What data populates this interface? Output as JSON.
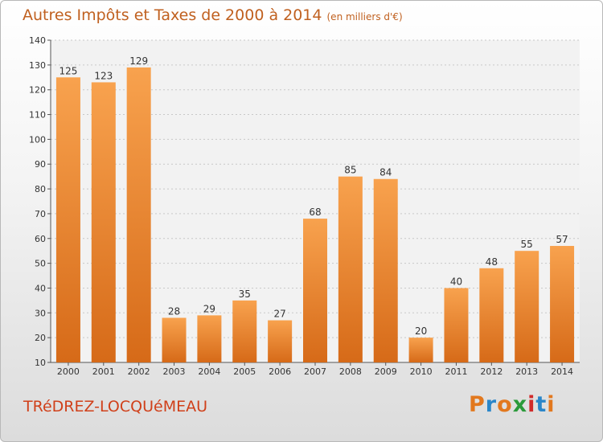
{
  "title": "Autres Impôts et Taxes de 2000 à 2014",
  "subtitle": "(en milliers d'€)",
  "commune": "TRéDREZ-LOCQUéMEAU",
  "logo": {
    "text": "Proxiti",
    "colors": [
      "#e2781e",
      "#2a86c9",
      "#e2781e",
      "#2a9a3a",
      "#d02a2a",
      "#2a86c9",
      "#e2781e"
    ]
  },
  "colors": {
    "bar_top": "#f8a24e",
    "bar_bottom": "#d66a18",
    "title": "#c0601f",
    "commune": "#d0401a"
  },
  "chart_data": {
    "type": "bar",
    "categories": [
      "2000",
      "2001",
      "2002",
      "2003",
      "2004",
      "2005",
      "2006",
      "2007",
      "2008",
      "2009",
      "2010",
      "2011",
      "2012",
      "2013",
      "2014"
    ],
    "values": [
      125,
      123,
      129,
      28,
      29,
      35,
      27,
      68,
      85,
      84,
      20,
      40,
      48,
      55,
      57
    ],
    "ylim": [
      10,
      140
    ],
    "yticks": [
      10,
      20,
      30,
      40,
      50,
      60,
      70,
      80,
      90,
      100,
      110,
      120,
      130,
      140
    ],
    "grid": true
  }
}
